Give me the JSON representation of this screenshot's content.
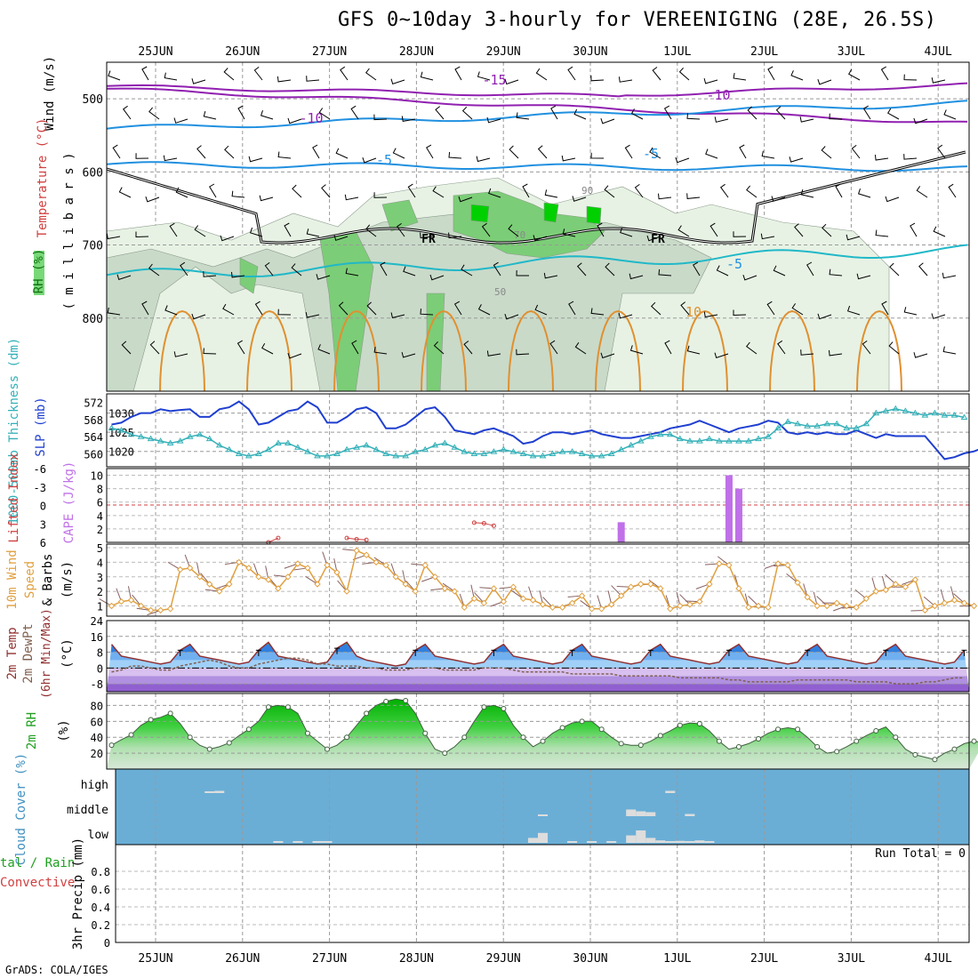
{
  "title": "GFS 0~10day 3-hourly for VEREENIGING (28E, 26.5S)",
  "credit": "GrADS: COLA/IGES",
  "dates": [
    "25JUN",
    "26JUN",
    "27JUN",
    "28JUN",
    "29JUN",
    "30JUN",
    "1JUL",
    "2JUL",
    "3JUL",
    "4JUL"
  ],
  "colors": {
    "slp": "#1f3fd0",
    "thick": "#33b0b8",
    "cape": "#c070e8",
    "li": "#d04040",
    "wind": "#e0a040",
    "temp": "#903030",
    "dewpt": "#806050",
    "rh": "#20a020",
    "cloud": "#6aaed6"
  },
  "chart_data": [
    {
      "type": "heatmap",
      "name": "upper-air",
      "ylabel_parts": [
        "RH (%)",
        "Temperature (°C)",
        "Wind (m/s)"
      ],
      "ylabel_units": "( m i l l i b a r s )",
      "y_ticks": [
        500,
        600,
        700,
        800
      ],
      "ylim": [
        450,
        900
      ],
      "temp_labels": [
        "-15",
        "-10",
        "-10",
        "-5",
        "-5",
        "-5",
        "10"
      ],
      "freezing_label": "FR",
      "rh_labels": [
        "50",
        "70",
        "90"
      ]
    },
    {
      "type": "line",
      "name": "slp-thickness",
      "ylabel_left": "1000-500mb Thickness (dm)",
      "ylabel_right": "SLP (mb)",
      "left_ticks": [
        "572",
        "568",
        "564",
        "560"
      ],
      "right_ticks": [
        "1030",
        "1025",
        "1020"
      ],
      "slp_range": [
        1016,
        1035
      ],
      "thickness_range": [
        557,
        574
      ],
      "series": [
        {
          "name": "SLP",
          "values": [
            1027,
            1027.5,
            1029,
            1030,
            1030,
            1031,
            1030.5,
            1030.8,
            1031,
            1029,
            1029,
            1031,
            1031.5,
            1033,
            1031,
            1027,
            1027.5,
            1029,
            1030.5,
            1031,
            1033,
            1031.5,
            1027.5,
            1027.5,
            1029,
            1031,
            1031.5,
            1030,
            1026,
            1026,
            1027,
            1029,
            1031,
            1031.5,
            1029,
            1025.5,
            1025,
            1024.5,
            1025.5,
            1026,
            1025,
            1024,
            1022,
            1022.5,
            1024,
            1025,
            1025,
            1024.5,
            1025,
            1025.5,
            1024.5,
            1024,
            1023.5,
            1023.5,
            1024,
            1024.5,
            1025,
            1026,
            1026.5,
            1027,
            1028,
            1027,
            1026,
            1025,
            1026,
            1026.5,
            1027,
            1028,
            1027.5,
            1025,
            1024.5,
            1025,
            1024.5,
            1025,
            1024.5,
            1024.5,
            1025.5,
            1024.5,
            1023.5,
            1024.5,
            1024,
            1024,
            1024,
            1024,
            1021,
            1018,
            1018.5,
            1019.5,
            1020,
            1021,
            1022,
            1023.5
          ]
        },
        {
          "name": "Thickness",
          "values": [
            566,
            565.5,
            564.5,
            564,
            563.5,
            563,
            562.5,
            563,
            564,
            564.5,
            563.5,
            562,
            561,
            560,
            559.5,
            560,
            561,
            562.5,
            562.5,
            561.5,
            560.5,
            559.5,
            559.5,
            560,
            561,
            561.5,
            562,
            561,
            560,
            559.5,
            559.5,
            560.5,
            561,
            562,
            562.5,
            561.5,
            560.5,
            560,
            560,
            560.5,
            561,
            560.5,
            560,
            559.5,
            559.5,
            560,
            560.5,
            560.5,
            560,
            559.5,
            559.5,
            560,
            561,
            562,
            563,
            564,
            564.5,
            564.5,
            563.5,
            563,
            563,
            563.5,
            563,
            563,
            563,
            563,
            563.5,
            564,
            566,
            567.5,
            567,
            566.5,
            566.5,
            567,
            567,
            566,
            566,
            567,
            569.5,
            570,
            570.5,
            570,
            569.5,
            569,
            569.5,
            569,
            569,
            568.5
          ]
        }
      ]
    },
    {
      "type": "bar",
      "name": "cape-li",
      "ylabel_left": "Lifted Index",
      "ylabel_right": "CAPE (J/kg)",
      "li_ticks": [
        "-6",
        "-3",
        "0",
        "3",
        "6"
      ],
      "cape_ticks": [
        "10",
        "8",
        "6",
        "4",
        "2"
      ],
      "cape_range": [
        0,
        11
      ],
      "series": [
        {
          "name": "CAPE",
          "values": [
            0,
            0,
            0,
            0,
            0,
            0,
            0,
            0,
            0,
            0,
            0,
            0,
            0,
            0,
            0,
            0,
            0,
            0,
            0,
            0,
            0,
            0,
            0,
            0,
            0,
            0,
            0,
            0,
            0,
            0,
            0,
            0,
            0,
            0,
            0,
            0,
            0,
            0,
            0,
            0,
            0,
            0,
            0,
            0,
            0,
            0,
            0,
            0,
            0,
            0,
            0,
            0,
            3,
            0,
            0,
            0,
            0,
            0,
            0,
            0,
            0,
            0,
            0,
            10,
            8,
            0,
            0,
            0,
            0,
            0,
            0,
            0,
            0,
            0,
            0,
            0,
            0,
            0,
            0,
            0,
            0,
            0,
            0,
            0,
            0,
            0,
            0,
            0,
            0,
            0
          ]
        },
        {
          "name": "Lifted Index",
          "points": [
            {
              "i": 16,
              "v": 6
            },
            {
              "i": 17,
              "v": 5.3
            },
            {
              "i": 24,
              "v": 5.3
            },
            {
              "i": 25,
              "v": 5.5
            },
            {
              "i": 26,
              "v": 5.6
            },
            {
              "i": 37,
              "v": 2.8
            },
            {
              "i": 38,
              "v": 2.9
            },
            {
              "i": 39,
              "v": 3.3
            }
          ]
        }
      ]
    },
    {
      "type": "line",
      "name": "10m-wind",
      "ylabel": "10m Wind Speed & Barbs (m/s)",
      "y_ticks": [
        "5",
        "4",
        "3",
        "2",
        "1"
      ],
      "ylim": [
        0,
        5
      ],
      "series": [
        {
          "name": "Wind speed",
          "values": [
            1,
            1.3,
            1.4,
            1,
            0.7,
            0.7,
            0.8,
            3.5,
            3.6,
            3,
            2.5,
            2,
            2.5,
            4,
            3.6,
            3,
            2.8,
            2.2,
            3,
            3.9,
            3.6,
            2.5,
            3.8,
            3.3,
            2,
            4.8,
            4.5,
            4,
            3.8,
            3,
            2.5,
            2,
            3.8,
            3,
            2.2,
            2,
            0.9,
            1.5,
            1.2,
            2.2,
            1.3,
            2.3,
            1.5,
            1.4,
            1.1,
            0.9,
            0.9,
            1.2,
            1.7,
            0.8,
            0.8,
            1.1,
            1.7,
            2.3,
            2.5,
            2.5,
            2.2,
            0.8,
            1,
            1.1,
            1.3,
            2.5,
            3.9,
            3.8,
            2.2,
            0.9,
            1,
            0.9,
            3.9,
            3.8,
            2.6,
            1.6,
            1,
            1,
            1.2,
            1,
            0.9,
            1.5,
            2,
            2.1,
            2.5,
            2.3,
            2.8,
            0.7,
            1,
            1.2,
            1.4,
            1.2,
            1
          ]
        }
      ]
    },
    {
      "type": "area",
      "name": "2m-temp",
      "ylabel": "2m Temp 2m DewPt (6hr Min/Max) (°C)",
      "y_ticks": [
        "24",
        "16",
        "8",
        "0",
        "-8"
      ],
      "ylim": [
        -12,
        24
      ],
      "temp_values": [
        12,
        6,
        5,
        4,
        3,
        2,
        3,
        9,
        12,
        6,
        5,
        4,
        3,
        2,
        3,
        9,
        13,
        6,
        5,
        4,
        3,
        2,
        3,
        10,
        13,
        6,
        4,
        3,
        2,
        1,
        2,
        9,
        12,
        6,
        5,
        4,
        3,
        2,
        3,
        9,
        12,
        6,
        5,
        4,
        3,
        2,
        3,
        9,
        12,
        6,
        5,
        4,
        3,
        2,
        3,
        9,
        12,
        6,
        5,
        4,
        3,
        2,
        3,
        9,
        12,
        6,
        5,
        4,
        3,
        2,
        3,
        9,
        12,
        6,
        5,
        4,
        3,
        2,
        3,
        9,
        12,
        6,
        5,
        4,
        3,
        2,
        3,
        9
      ],
      "dewpt_values": [
        -2,
        -1,
        1,
        1,
        0,
        -1,
        -1,
        1,
        2,
        3,
        4,
        3,
        1,
        0,
        0,
        2,
        3,
        4,
        5,
        5,
        4,
        2,
        2,
        1,
        1,
        1,
        0,
        0,
        -1,
        -1,
        -1,
        0,
        0,
        0,
        -1,
        -1,
        -1,
        -1,
        0,
        0,
        0,
        -1,
        -2,
        -2,
        -2,
        -2,
        -2,
        -3,
        -3,
        -3,
        -3,
        -3,
        -4,
        -4,
        -4,
        -4,
        -4,
        -4,
        -5,
        -5,
        -5,
        -5,
        -5,
        -6,
        -6,
        -7,
        -7,
        -7,
        -7,
        -7,
        -6,
        -6,
        -6,
        -6,
        -6,
        -6,
        -7,
        -7,
        -7,
        -7,
        -8,
        -8,
        -8,
        -7,
        -7,
        -6,
        -5,
        -5
      ]
    },
    {
      "type": "area",
      "name": "2m-rh",
      "ylabel": "2m RH (%)",
      "y_ticks": [
        "80",
        "60",
        "40",
        "20"
      ],
      "ylim": [
        0,
        95
      ],
      "values": [
        30,
        37,
        43,
        55,
        62,
        65,
        70,
        57,
        40,
        30,
        25,
        28,
        33,
        42,
        50,
        60,
        78,
        80,
        78,
        70,
        45,
        35,
        25,
        30,
        40,
        55,
        70,
        80,
        85,
        88,
        86,
        70,
        45,
        25,
        20,
        28,
        40,
        60,
        78,
        80,
        76,
        55,
        40,
        28,
        35,
        45,
        52,
        58,
        60,
        60,
        50,
        40,
        32,
        30,
        30,
        35,
        42,
        48,
        55,
        58,
        57,
        48,
        35,
        25,
        28,
        32,
        38,
        45,
        50,
        52,
        50,
        40,
        28,
        20,
        22,
        28,
        35,
        42,
        48,
        53,
        40,
        25,
        18,
        15,
        12,
        20,
        25,
        32,
        35,
        33
      ]
    },
    {
      "type": "heatmap",
      "name": "cloud-cover",
      "ylabel": "Cloud Cover (%)",
      "level_labels": [
        "high",
        "middle",
        "low"
      ],
      "high_cells": [
        [
          10,
          5
        ],
        [
          11,
          10
        ],
        [
          57,
          10
        ]
      ],
      "middle_cells": [
        [
          44,
          3
        ],
        [
          53,
          30
        ],
        [
          54,
          22
        ],
        [
          55,
          18
        ],
        [
          59,
          10
        ]
      ],
      "low_cells": [
        [
          17,
          2
        ],
        [
          19,
          2
        ],
        [
          21,
          2
        ],
        [
          22,
          2
        ],
        [
          43,
          20
        ],
        [
          44,
          40
        ],
        [
          47,
          2
        ],
        [
          49,
          2
        ],
        [
          51,
          2
        ],
        [
          53,
          30
        ],
        [
          54,
          50
        ],
        [
          55,
          20
        ],
        [
          56,
          10
        ],
        [
          57,
          5
        ],
        [
          58,
          8
        ],
        [
          59,
          6
        ],
        [
          60,
          10
        ],
        [
          61,
          5
        ]
      ]
    },
    {
      "type": "bar",
      "name": "3hr-precip",
      "ylabel": "3hr Precip (mm)",
      "ylabel_left_parts": [
        "Total / Rain",
        "Convective"
      ],
      "y_ticks": [
        "0.8",
        "0.6",
        "0.4",
        "0.2",
        "0"
      ],
      "ylim": [
        0,
        1
      ],
      "run_total_label": "Run Total = 0",
      "values": []
    }
  ]
}
